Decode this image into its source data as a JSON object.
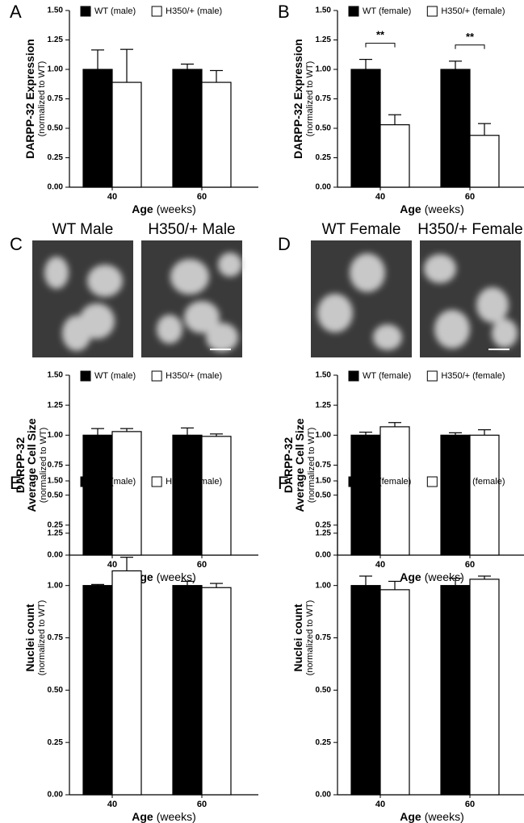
{
  "chart_data": [
    {
      "type": "bar",
      "panel": "A",
      "ylabel": [
        "DARPP-32 Expression"
      ],
      "ylabel_sub": "(normalized to WT)",
      "xlabel": "Age",
      "xlabel_unit": "(weeks)",
      "categories": [
        "40",
        "60"
      ],
      "series": [
        {
          "name": "WT (male)",
          "color": "#000000",
          "values": [
            1.0,
            1.0
          ],
          "errors": [
            0.165,
            0.045
          ]
        },
        {
          "name": "H350/+ (male)",
          "color": "#ffffff",
          "values": [
            0.89,
            0.89
          ],
          "errors": [
            0.28,
            0.1
          ]
        }
      ],
      "ylim": [
        0,
        1.5
      ],
      "yticks": [
        {
          "value": 0,
          "label": "0.00"
        },
        {
          "value": 0.25,
          "label": "0.25"
        },
        {
          "value": 0.5,
          "label": "0.50"
        },
        {
          "value": 0.75,
          "label": "0.75"
        },
        {
          "value": 1,
          "label": "1.00"
        },
        {
          "value": 1.25,
          "label": "1.25"
        },
        {
          "value": 1.5,
          "label": "1.50"
        }
      ]
    },
    {
      "type": "bar",
      "panel": "B",
      "ylabel": [
        "DARPP-32 Expression"
      ],
      "ylabel_sub": "(normalized to WT)",
      "xlabel": "Age",
      "xlabel_unit": "(weeks)",
      "categories": [
        "40",
        "60"
      ],
      "series": [
        {
          "name": "WT (female)",
          "color": "#000000",
          "values": [
            1.0,
            1.0
          ],
          "errors": [
            0.085,
            0.07
          ]
        },
        {
          "name": "H350/+ (female)",
          "color": "#ffffff",
          "values": [
            0.53,
            0.44
          ],
          "errors": [
            0.085,
            0.1
          ]
        }
      ],
      "annotations": [
        "**",
        "**"
      ],
      "ylim": [
        0,
        1.5
      ],
      "yticks": [
        {
          "value": 0,
          "label": "0.00"
        },
        {
          "value": 0.25,
          "label": "0.25"
        },
        {
          "value": 0.5,
          "label": "0.50"
        },
        {
          "value": 0.75,
          "label": "0.75"
        },
        {
          "value": 1,
          "label": "1.00"
        },
        {
          "value": 1.25,
          "label": "1.25"
        },
        {
          "value": 1.5,
          "label": "1.50"
        }
      ]
    },
    {
      "type": "bar",
      "panel": "C",
      "ylabel": [
        "DARPP-32",
        "Average Cell Size"
      ],
      "ylabel_sub": "(normalized to WT)",
      "xlabel": "Age",
      "xlabel_unit": "(weeks)",
      "categories": [
        "40",
        "60"
      ],
      "series": [
        {
          "name": "WT (male)",
          "color": "#000000",
          "values": [
            1.0,
            1.0
          ],
          "errors": [
            0.055,
            0.06
          ]
        },
        {
          "name": "H350/+ (male)",
          "color": "#ffffff",
          "values": [
            1.03,
            0.99
          ],
          "errors": [
            0.025,
            0.02
          ]
        }
      ],
      "ylim": [
        0,
        1.5
      ],
      "yticks": [
        {
          "value": 0,
          "label": "0.00"
        },
        {
          "value": 0.25,
          "label": "0.25"
        },
        {
          "value": 0.5,
          "label": "0.50"
        },
        {
          "value": 0.75,
          "label": "0.75"
        },
        {
          "value": 1,
          "label": "1.00"
        },
        {
          "value": 1.25,
          "label": "1.25"
        },
        {
          "value": 1.5,
          "label": "1.50"
        }
      ]
    },
    {
      "type": "bar",
      "panel": "D",
      "ylabel": [
        "DARPP-32",
        "Average Cell Size"
      ],
      "ylabel_sub": "(normalized to WT)",
      "xlabel": "Age",
      "xlabel_unit": "(weeks)",
      "categories": [
        "40",
        "60"
      ],
      "series": [
        {
          "name": "WT (female)",
          "color": "#000000",
          "values": [
            1.0,
            1.0
          ],
          "errors": [
            0.025,
            0.02
          ]
        },
        {
          "name": "H350/+ (female)",
          "color": "#ffffff",
          "values": [
            1.07,
            1.0
          ],
          "errors": [
            0.035,
            0.045
          ]
        }
      ],
      "ylim": [
        0,
        1.5
      ],
      "yticks": [
        {
          "value": 0,
          "label": "0.00"
        },
        {
          "value": 0.25,
          "label": "0.25"
        },
        {
          "value": 0.5,
          "label": "0.50"
        },
        {
          "value": 0.75,
          "label": "0.75"
        },
        {
          "value": 1,
          "label": "1.00"
        },
        {
          "value": 1.25,
          "label": "1.25"
        },
        {
          "value": 1.5,
          "label": "1.50"
        }
      ]
    },
    {
      "type": "bar",
      "panel": "E",
      "ylabel": [
        "Nuclei count"
      ],
      "ylabel_sub": "(normalized to WT)",
      "xlabel": "Age",
      "xlabel_unit": "(weeks)",
      "categories": [
        "40",
        "60"
      ],
      "series": [
        {
          "name": "WT (male)",
          "color": "#000000",
          "values": [
            1.0,
            1.0
          ],
          "errors": [
            0.005,
            0.02
          ]
        },
        {
          "name": "H350/+ (male)",
          "color": "#ffffff",
          "values": [
            1.07,
            0.99
          ],
          "errors": [
            0.065,
            0.02
          ]
        }
      ],
      "ylim": [
        0,
        1.5
      ],
      "yticks": [
        {
          "value": 0,
          "label": "0.00"
        },
        {
          "value": 0.25,
          "label": "0.25"
        },
        {
          "value": 0.5,
          "label": "0.50"
        },
        {
          "value": 0.75,
          "label": "0.75"
        },
        {
          "value": 1,
          "label": "1.00"
        },
        {
          "value": 1.25,
          "label": "1.25"
        },
        {
          "value": 1.5,
          "label": "1.50"
        }
      ]
    },
    {
      "type": "bar",
      "panel": "F",
      "ylabel": [
        "Nuclei count"
      ],
      "ylabel_sub": "(normalized to WT)",
      "xlabel": "Age",
      "xlabel_unit": "(weeks)",
      "categories": [
        "40",
        "60"
      ],
      "series": [
        {
          "name": "WT (female)",
          "color": "#000000",
          "values": [
            1.0,
            1.0
          ],
          "errors": [
            0.045,
            0.035
          ]
        },
        {
          "name": "H350/+ (female)",
          "color": "#ffffff",
          "values": [
            0.98,
            1.03
          ],
          "errors": [
            0.04,
            0.015
          ]
        }
      ],
      "ylim": [
        0,
        1.5
      ],
      "yticks": [
        {
          "value": 0,
          "label": "0.00"
        },
        {
          "value": 0.25,
          "label": "0.25"
        },
        {
          "value": 0.5,
          "label": "0.50"
        },
        {
          "value": 0.75,
          "label": "0.75"
        },
        {
          "value": 1,
          "label": "1.00"
        },
        {
          "value": 1.25,
          "label": "1.25"
        },
        {
          "value": 1.5,
          "label": "1.50"
        }
      ]
    }
  ],
  "micrographs": [
    "WT Male",
    "H350/+ Male",
    "WT Female",
    "H350/+ Female"
  ]
}
